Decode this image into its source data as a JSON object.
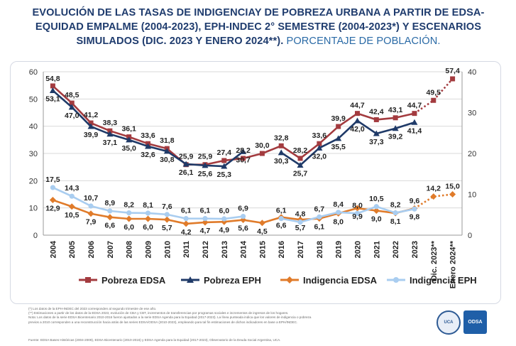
{
  "title": {
    "main": "EVOLUCIÓN DE LAS TASAS DE INDIGENCIAY DE POBREZA URBANA A PARTIR DE EDSA-EQUIDAD EMPALME (2004-2023), EPH-INDEC 2°  SEMESTRE (2004-2023*) Y ESCENARIOS SIMULADOS (DIC. 2023 Y ENERO 2024**).",
    "sub": "PORCENTAJE DE POBLACIÓN."
  },
  "colors": {
    "pobreza_edsa": "#a33b3f",
    "pobreza_eph": "#1f3a68",
    "indigencia_edsa": "#e07b2a",
    "indigencia_eph": "#a9cdf0",
    "grid": "#d9d9d9",
    "axis_text": "#333333"
  },
  "chart_data": {
    "type": "line",
    "categories": [
      "2004",
      "2005",
      "2006",
      "2007",
      "2008",
      "2009",
      "2010",
      "2011",
      "2012",
      "2013",
      "2014",
      "2015",
      "2016",
      "2017",
      "2018",
      "2019",
      "2020",
      "2021",
      "2022",
      "2023",
      "Dic. 2023**",
      "Enero 2024**"
    ],
    "y_left": {
      "range": [
        0,
        60
      ],
      "ticks": [
        "0",
        "10",
        "20",
        "30",
        "40",
        "50",
        "60"
      ]
    },
    "y_right": {
      "range": [
        0,
        40
      ],
      "ticks": [
        "0",
        "10",
        "20",
        "30",
        "40"
      ]
    },
    "series": [
      {
        "name": "Pobreza EDSA",
        "axis": "left",
        "marker": "square",
        "color_key": "pobreza_edsa",
        "values": [
          54.8,
          48.5,
          41.2,
          38.3,
          36.1,
          33.6,
          31.8,
          25.9,
          25.9,
          27.4,
          28.2,
          30.0,
          32.8,
          28.2,
          33.6,
          39.9,
          44.7,
          42.4,
          43.1,
          44.7,
          49.5,
          57.4
        ],
        "labels": [
          "54,8",
          "48,5",
          "41,2",
          "38,3",
          "36,1",
          "33,6",
          "31,8",
          "25,9",
          "25,9",
          "27,4",
          "28,2",
          "30,0",
          "32,8",
          "28,2",
          "33,6",
          "39,9",
          "44,7",
          "42,4",
          "43,1",
          "44,7",
          "49,5",
          "57,4"
        ],
        "projection_from": 19
      },
      {
        "name": "Pobreza EPH",
        "axis": "left",
        "marker": "triangle",
        "color_key": "pobreza_eph",
        "values": [
          53.1,
          47.0,
          39.9,
          37.1,
          35.0,
          32.6,
          30.8,
          26.1,
          25.6,
          25.3,
          30.7,
          null,
          30.3,
          25.7,
          32.0,
          35.5,
          42.0,
          37.3,
          39.2,
          41.4,
          null,
          null
        ],
        "labels": [
          "53,1",
          "47,0",
          "39,9",
          "37,1",
          "35,0",
          "32,6",
          "30,8",
          "26,1",
          "25,6",
          "25,3",
          "30,7",
          "",
          "30,3",
          "25,7",
          "32,0",
          "35,5",
          "42,0",
          "37,3",
          "39,2",
          "41,4",
          "",
          ""
        ]
      },
      {
        "name": "Indigencia EDSA",
        "axis": "left",
        "marker": "diamond",
        "color_key": "indigencia_edsa",
        "values": [
          12.9,
          10.5,
          7.9,
          6.6,
          6.0,
          6.0,
          5.7,
          4.2,
          4.7,
          4.9,
          5.6,
          4.5,
          6.6,
          5.7,
          6.1,
          8.0,
          9.9,
          9.0,
          8.1,
          9.8,
          14.2,
          15.0
        ],
        "labels": [
          "12,9",
          "10,5",
          "7,9",
          "6,6",
          "6,0",
          "6,0",
          "5,7",
          "4,2",
          "4,7",
          "4,9",
          "5,6",
          "4,5",
          "6,6",
          "5,7",
          "6,1",
          "8,0",
          "9,9",
          "9,0",
          "8,1",
          "9,8",
          "14,2",
          "15,0"
        ],
        "projection_from": 19
      },
      {
        "name": "Indigencia EPH",
        "axis": "left",
        "marker": "circle",
        "color_key": "indigencia_eph",
        "values": [
          17.5,
          14.3,
          10.7,
          8.9,
          8.2,
          8.1,
          7.6,
          6.1,
          6.1,
          6.0,
          6.9,
          null,
          6.1,
          4.8,
          6.7,
          8.4,
          8.0,
          10.5,
          8.2,
          9.6,
          null,
          null
        ],
        "labels": [
          "17,5",
          "14,3",
          "10,7",
          "8,9",
          "8,2",
          "8,1",
          "7,6",
          "6,1",
          "6,1",
          "6,0",
          "6,9",
          "",
          "6,1",
          "4,8",
          "6,7",
          "8,4",
          "8,0",
          "10,5",
          "8,2",
          "9,6",
          "",
          ""
        ]
      }
    ],
    "legend_position": "bottom"
  },
  "notes": [
    "(*) Los datos de la EPH-INDEC del 2023 corresponden al segundo trimestre de ese año.",
    "(**) Estimaciones a partir de los datos de la EDSA 2023, evolución de CBA y CBT, incrementos de transferencias por programas sociales e incrementos de ingresos  de los hogares.",
    "Nota: Los datos de la serie EDSA Bicentenario 2010-2016 fueron ajustados a la serie EDSA Agenda para la Equidad (2017-2023). La línea punteada indica que los valores de indigencia o pobreza",
    "previos a 2010 corresponden a una reconstrucción hacia atrás de las series EDSA/ODSA (2010-2023), empleando para tal fin estimaciones de dichos indicadores en base a EPH/INDEC."
  ],
  "source": "Fuente: EDSA Bases Históricas (2004-2009), EDSA Bicentenario (2010-2016) y EDSA Agenda para la Equidad (2017-2023), Observatorio de la Deuda Social Argentina, UCA.",
  "logos": {
    "seal": "UCA",
    "brand": "ODSA"
  }
}
